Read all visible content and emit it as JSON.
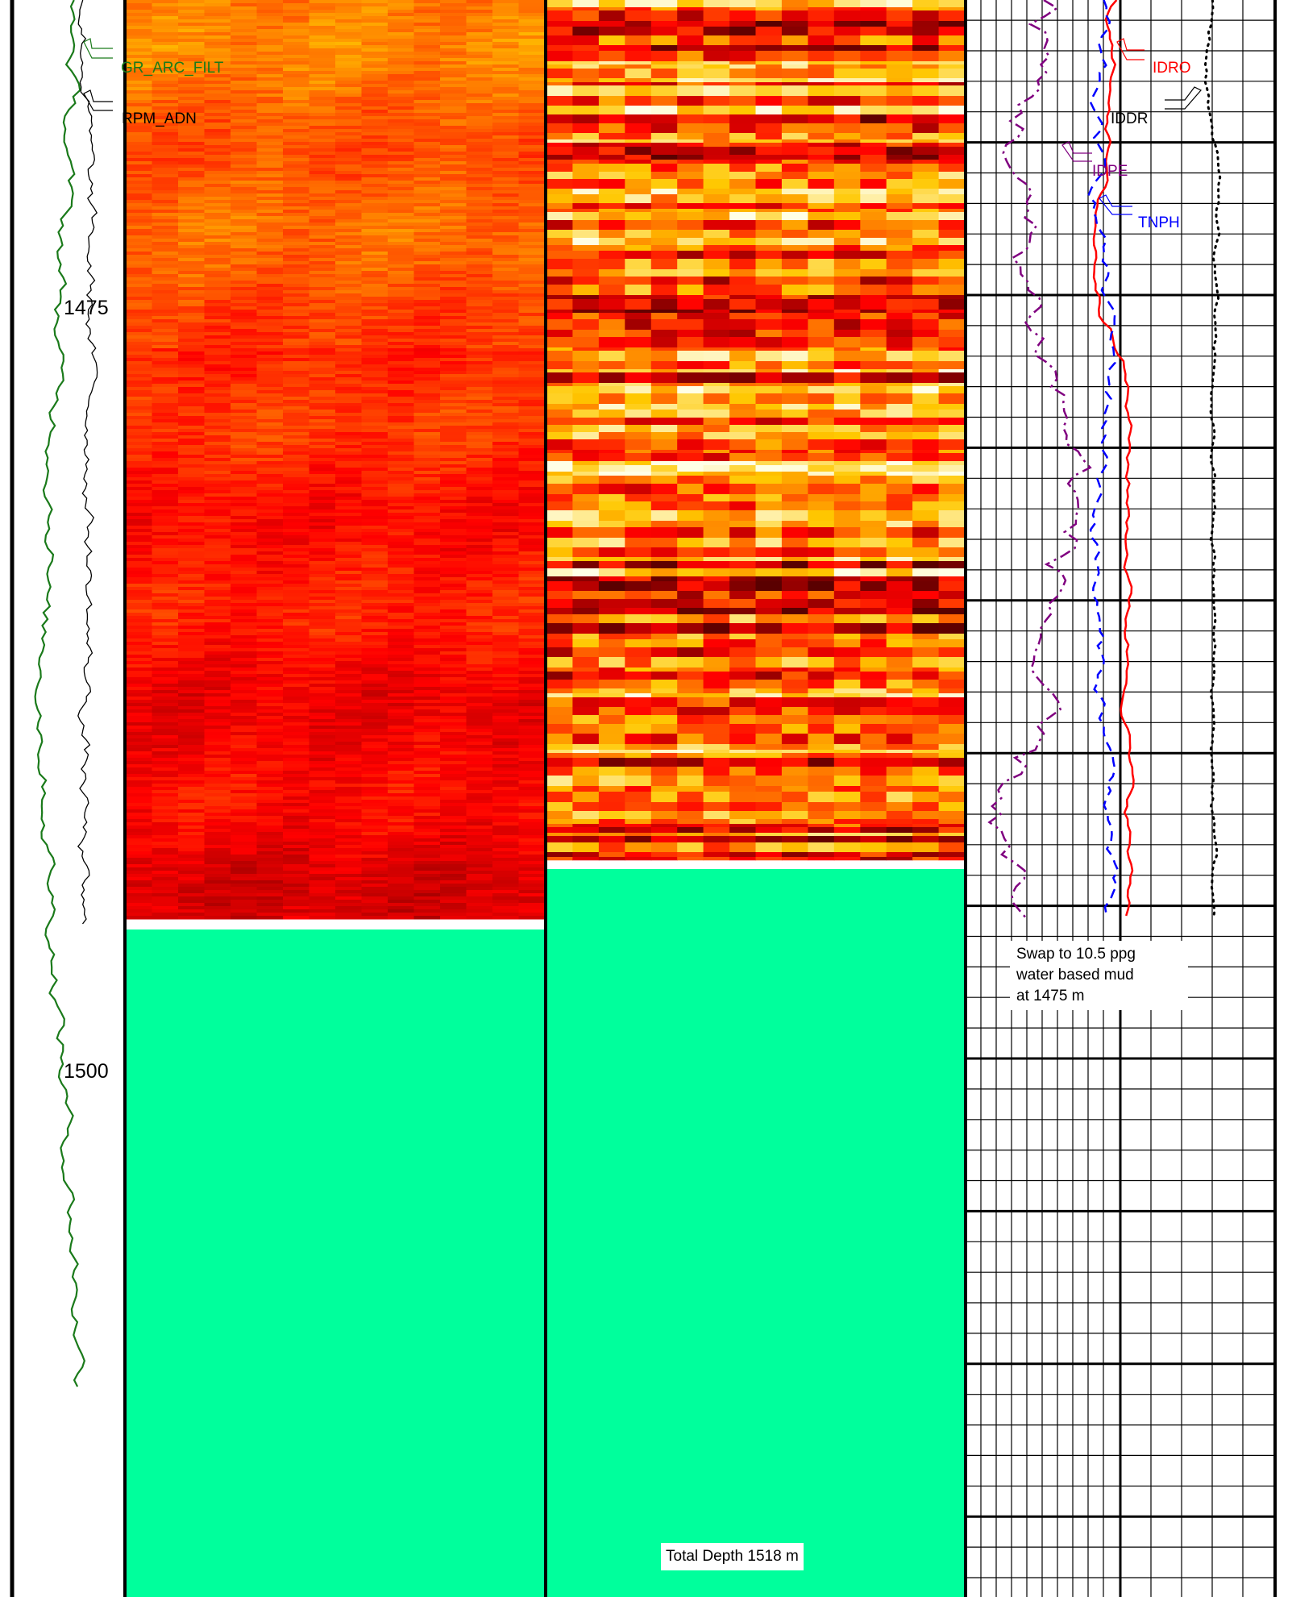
{
  "chart_data": {
    "type": "well-log",
    "depth_unit": "m",
    "depth_ticks": [
      "1475",
      "1500"
    ],
    "depth_tick_values": [
      1475,
      1500
    ],
    "tracks": [
      {
        "name": "gamma-track",
        "curves": [
          {
            "name": "GR_ARC_FILT",
            "color": "#1a7a1a",
            "style": "solid"
          },
          {
            "name": "RPM_ADN",
            "color": "#000000",
            "style": "solid"
          }
        ]
      },
      {
        "name": "image-track-static",
        "palette": "heat",
        "data_end_depth": 1495.4
      },
      {
        "name": "image-track-dynamic",
        "palette": "heat",
        "data_end_depth": 1493.5
      },
      {
        "name": "resistivity-track",
        "curves": [
          {
            "name": "IDRO",
            "color": "#ff0000",
            "style": "solid"
          },
          {
            "name": "IDDR",
            "color": "#000000",
            "style": "dotted"
          },
          {
            "name": "IDPE",
            "color": "#800080",
            "style": "dashdot"
          },
          {
            "name": "TNPH",
            "color": "#0000ff",
            "style": "dashed"
          }
        ]
      }
    ],
    "annotations": {
      "mud_note": [
        "Swap to 10.5 ppg",
        "water based mud",
        "at 1475 m"
      ],
      "total_depth": "Total Depth 1518 m"
    }
  },
  "colors": {
    "no_data_fill": "#00ff9c",
    "grid": "#000000"
  }
}
